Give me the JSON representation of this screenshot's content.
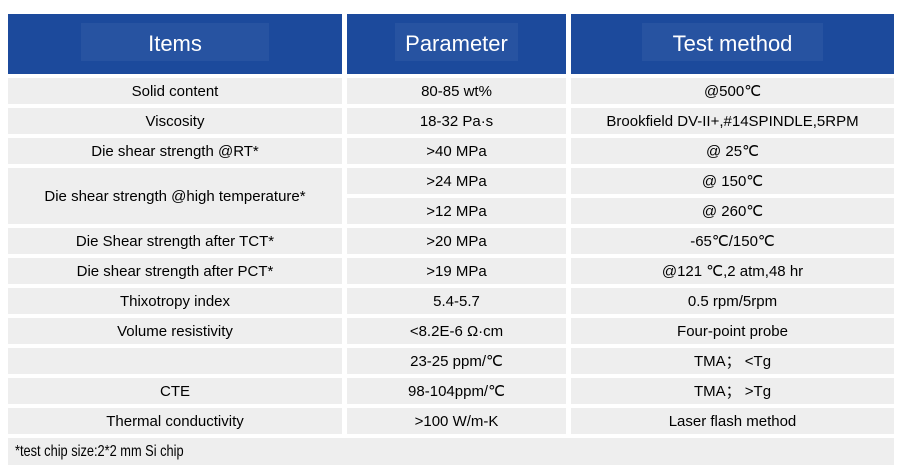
{
  "table": {
    "header": {
      "items": "Items",
      "parameter": "Parameter",
      "test_method": "Test method"
    },
    "rows": [
      {
        "item": "Solid content",
        "parameter": "80-85 wt%",
        "test_method": "@500℃"
      },
      {
        "item": "Viscosity",
        "parameter": "18-32 Pa·s",
        "test_method": "Brookfield DV-II+,#14SPINDLE,5RPM"
      },
      {
        "item": "Die shear strength @RT*",
        "parameter": ">40 MPa",
        "test_method": "@ 25℃"
      },
      {
        "item": "Die shear strength @high temperature*",
        "parameter": ">24 MPa",
        "test_method": "@ 150℃",
        "item_rowspan": 2
      },
      {
        "item": null,
        "parameter": ">12 MPa",
        "test_method": "@ 260℃"
      },
      {
        "item": "Die Shear strength after TCT*",
        "parameter": ">20 MPa",
        "test_method": "-65℃/150℃"
      },
      {
        "item": "Die shear strength after PCT*",
        "parameter": ">19 MPa",
        "test_method": "@121 ℃,2 atm,48 hr"
      },
      {
        "item": "Thixotropy index",
        "parameter": "5.4-5.7",
        "test_method": "0.5 rpm/5rpm"
      },
      {
        "item": "Volume resistivity",
        "parameter": "<8.2E-6 Ω·cm",
        "test_method": "Four-point probe"
      },
      {
        "item": "",
        "parameter": "23-25 ppm/℃",
        "test_method": "TMA； <Tg"
      },
      {
        "item": "CTE",
        "parameter": "98-104ppm/℃",
        "test_method": "TMA； >Tg"
      },
      {
        "item": "Thermal conductivity",
        "parameter": ">100 W/m-K",
        "test_method": "Laser flash method"
      }
    ],
    "footnote": "*test chip size:2*2 mm Si chip"
  },
  "colors": {
    "header_bg": "#1c4a9c",
    "header_text": "#ffffff",
    "row_bg": "#eeeeee",
    "body_text": "#000000",
    "background": "#ffffff"
  }
}
